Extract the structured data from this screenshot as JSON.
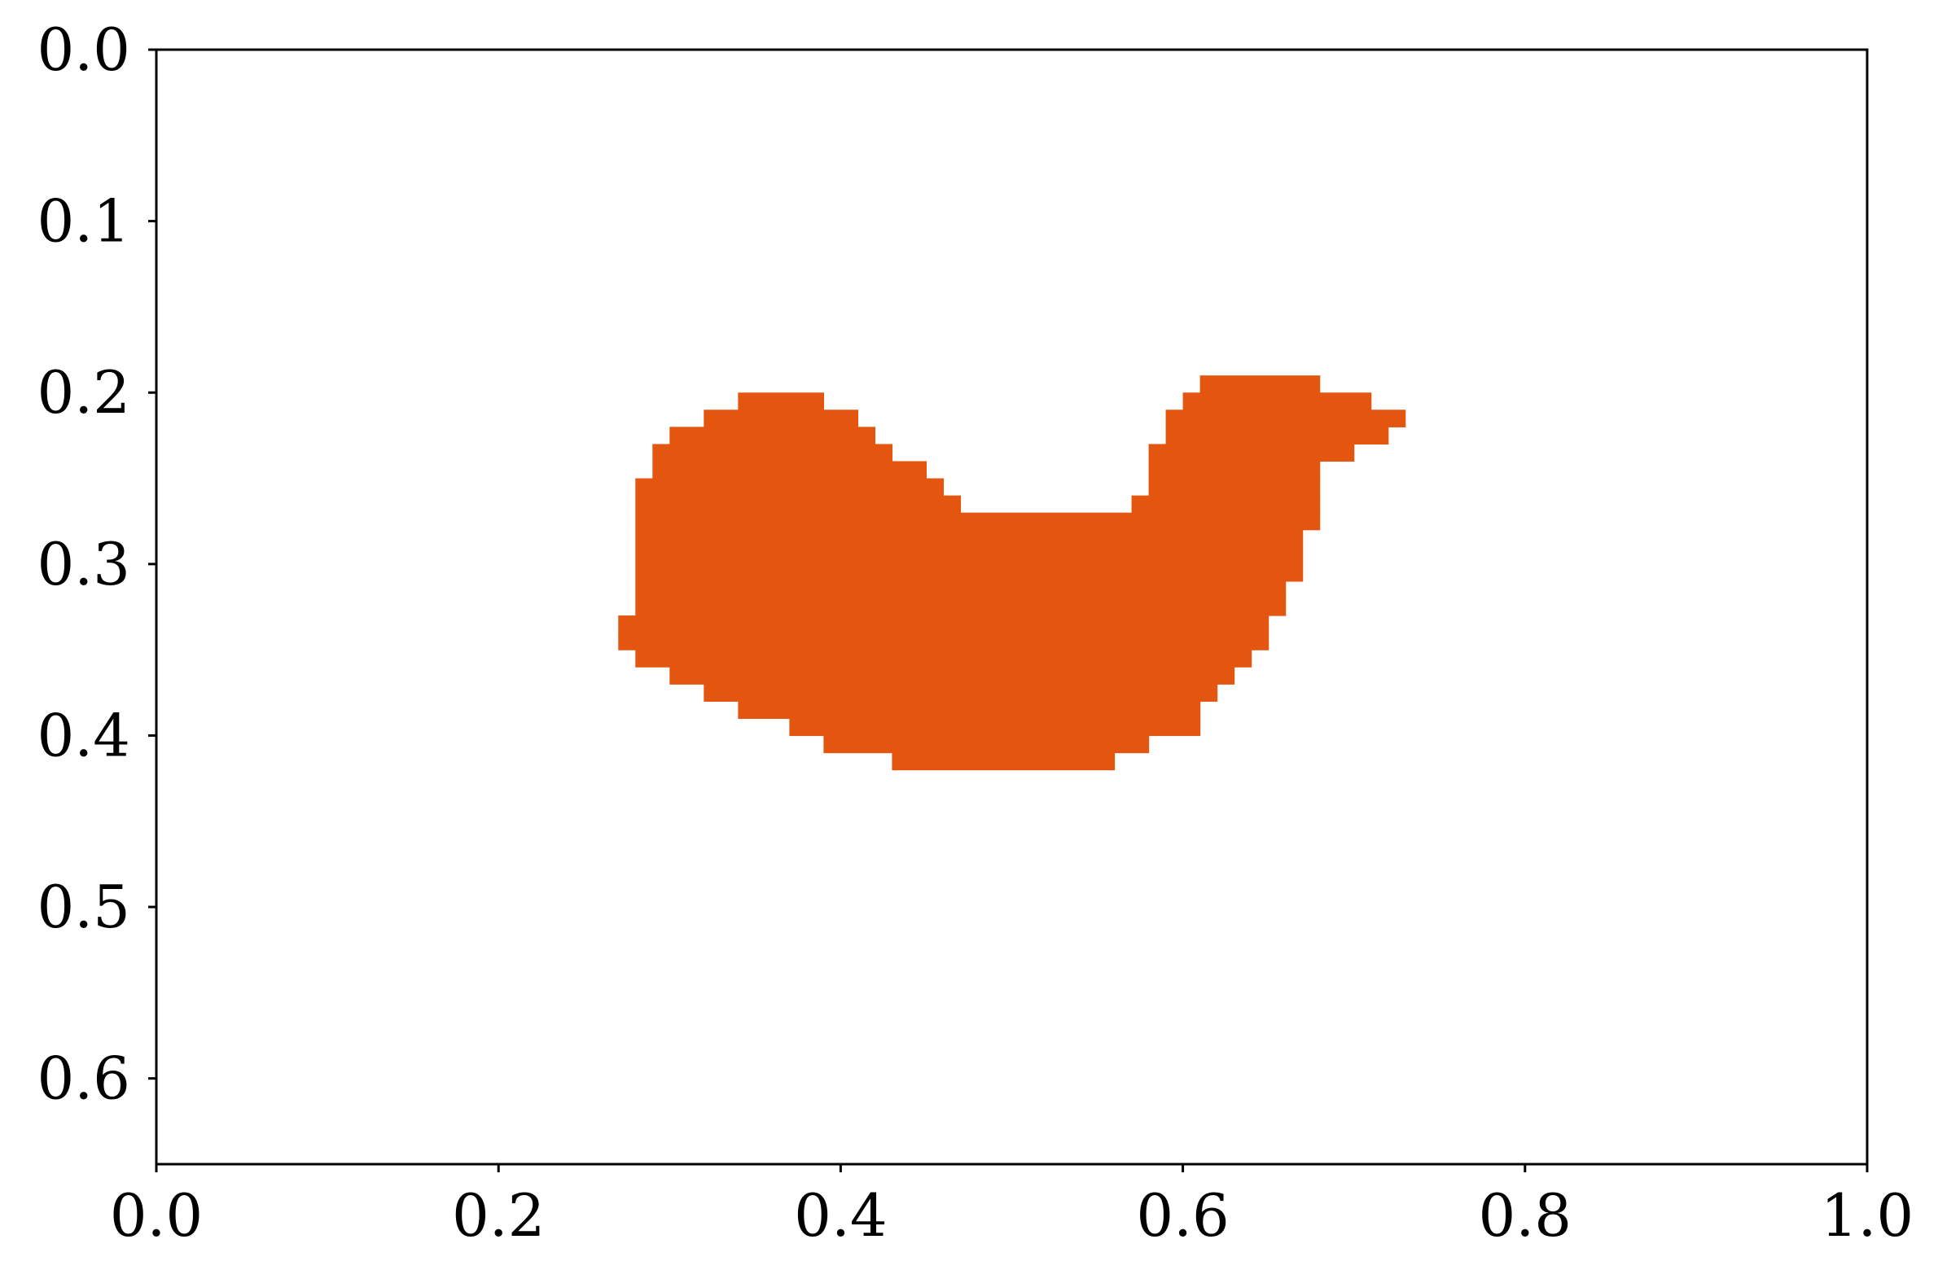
{
  "chart_data": {
    "type": "heatmap",
    "title": "",
    "xlabel": "",
    "ylabel": "",
    "xlim": [
      0.0,
      1.0
    ],
    "ylim": [
      0.65,
      0.0
    ],
    "y_inverted": true,
    "grid": false,
    "x_ticks": [
      "0.0",
      "0.2",
      "0.4",
      "0.6",
      "0.8",
      "1.0"
    ],
    "y_ticks": [
      "0.0",
      "0.1",
      "0.2",
      "0.3",
      "0.4",
      "0.5",
      "0.6"
    ],
    "cell_size": 0.01,
    "colors": {
      "fill": "#e4560f",
      "axes": "#000000",
      "background": "#ffffff"
    },
    "mask_rows": [
      {
        "y": 0.19,
        "spans": [
          [
            0.61,
            0.67
          ]
        ]
      },
      {
        "y": 0.2,
        "spans": [
          [
            0.34,
            0.38
          ],
          [
            0.6,
            0.7
          ]
        ]
      },
      {
        "y": 0.21,
        "spans": [
          [
            0.32,
            0.4
          ],
          [
            0.59,
            0.72
          ]
        ]
      },
      {
        "y": 0.22,
        "spans": [
          [
            0.3,
            0.41
          ],
          [
            0.59,
            0.71
          ]
        ]
      },
      {
        "y": 0.23,
        "spans": [
          [
            0.29,
            0.42
          ],
          [
            0.58,
            0.69
          ]
        ]
      },
      {
        "y": 0.24,
        "spans": [
          [
            0.29,
            0.44
          ],
          [
            0.58,
            0.67
          ]
        ]
      },
      {
        "y": 0.25,
        "spans": [
          [
            0.28,
            0.45
          ],
          [
            0.58,
            0.67
          ]
        ]
      },
      {
        "y": 0.26,
        "spans": [
          [
            0.28,
            0.46
          ],
          [
            0.57,
            0.67
          ]
        ]
      },
      {
        "y": 0.27,
        "spans": [
          [
            0.28,
            0.67
          ]
        ]
      },
      {
        "y": 0.28,
        "spans": [
          [
            0.28,
            0.66
          ]
        ]
      },
      {
        "y": 0.29,
        "spans": [
          [
            0.28,
            0.66
          ]
        ]
      },
      {
        "y": 0.3,
        "spans": [
          [
            0.28,
            0.66
          ]
        ]
      },
      {
        "y": 0.31,
        "spans": [
          [
            0.28,
            0.65
          ]
        ]
      },
      {
        "y": 0.32,
        "spans": [
          [
            0.28,
            0.65
          ]
        ]
      },
      {
        "y": 0.33,
        "spans": [
          [
            0.27,
            0.64
          ]
        ]
      },
      {
        "y": 0.34,
        "spans": [
          [
            0.27,
            0.64
          ]
        ]
      },
      {
        "y": 0.35,
        "spans": [
          [
            0.28,
            0.63
          ]
        ]
      },
      {
        "y": 0.36,
        "spans": [
          [
            0.3,
            0.62
          ]
        ]
      },
      {
        "y": 0.37,
        "spans": [
          [
            0.32,
            0.61
          ]
        ]
      },
      {
        "y": 0.38,
        "spans": [
          [
            0.34,
            0.6
          ]
        ]
      },
      {
        "y": 0.39,
        "spans": [
          [
            0.37,
            0.6
          ]
        ]
      },
      {
        "y": 0.4,
        "spans": [
          [
            0.39,
            0.57
          ]
        ]
      },
      {
        "y": 0.41,
        "spans": [
          [
            0.43,
            0.55
          ]
        ]
      }
    ]
  }
}
